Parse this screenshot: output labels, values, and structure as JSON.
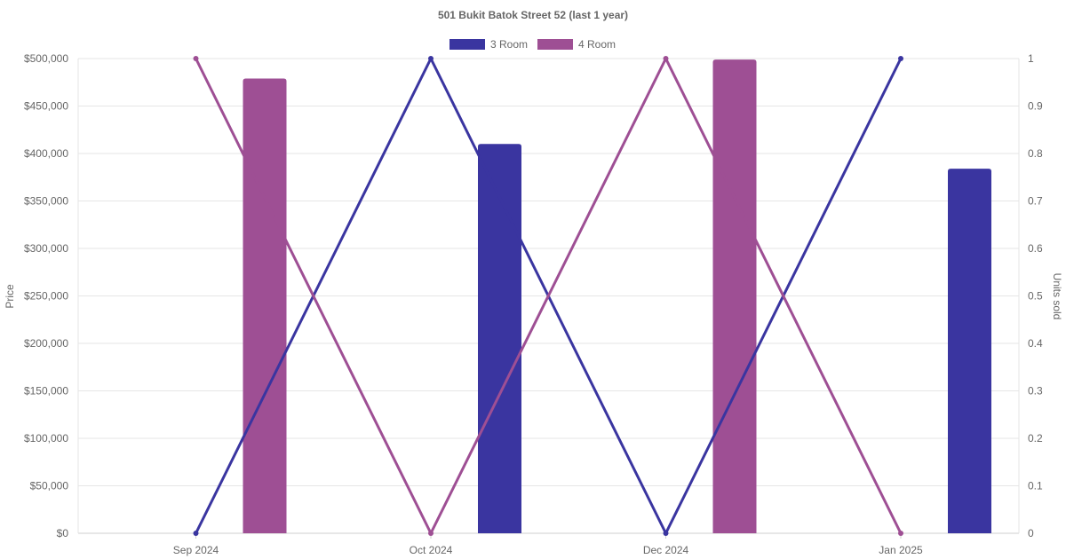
{
  "chart_data": {
    "type": "bar",
    "title": "501 Bukit Batok Street 52 (last 1 year)",
    "categories": [
      "Sep 2024",
      "Oct 2024",
      "Dec 2024",
      "Jan 2025"
    ],
    "ylabel": "Price",
    "y2label": "Units sold",
    "ylim": [
      0,
      500000
    ],
    "y2lim": [
      0,
      1
    ],
    "y_ticks": [
      "$0",
      "$50,000",
      "$100,000",
      "$150,000",
      "$200,000",
      "$250,000",
      "$300,000",
      "$350,000",
      "$400,000",
      "$450,000",
      "$500,000"
    ],
    "y2_ticks": [
      "0",
      "0.1",
      "0.2",
      "0.3",
      "0.4",
      "0.5",
      "0.6",
      "0.7",
      "0.8",
      "0.9",
      "1"
    ],
    "legend_position": "top",
    "grid": true,
    "series": [
      {
        "name": "3 Room",
        "color": "#3a35a0",
        "price": [
          null,
          410000,
          null,
          384000
        ],
        "units_sold": [
          0,
          1,
          0,
          1
        ]
      },
      {
        "name": "4 Room",
        "color": "#9e4f94",
        "price": [
          479000,
          null,
          499000,
          null
        ],
        "units_sold": [
          1,
          0,
          1,
          0
        ]
      }
    ]
  }
}
